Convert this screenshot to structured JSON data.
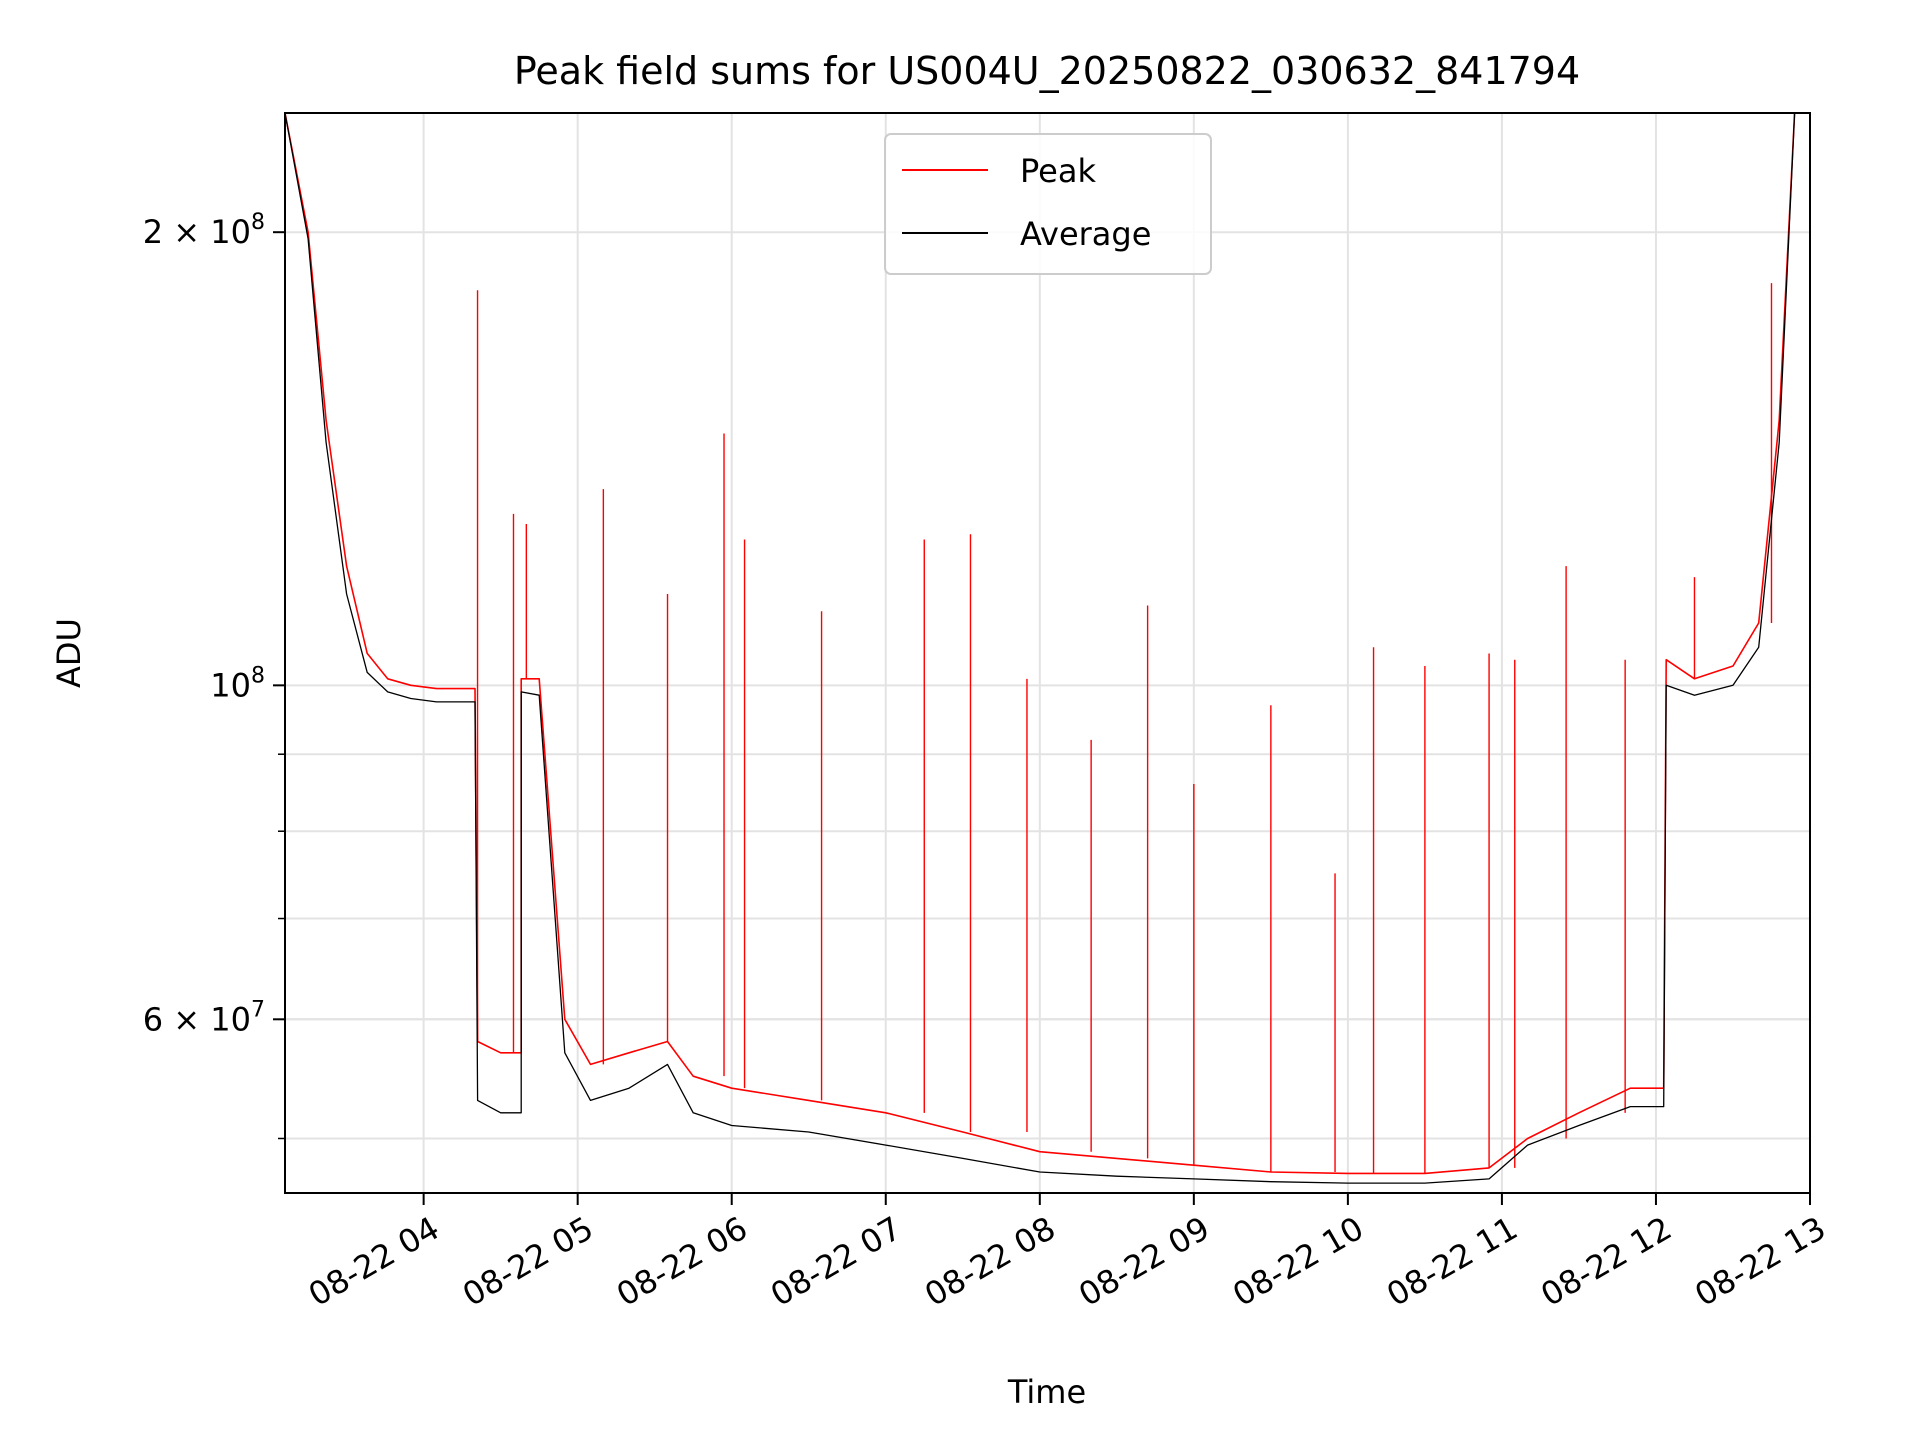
{
  "chart_data": {
    "type": "line",
    "title": "Peak field sums for US004U_20250822_030632_841794",
    "xlabel": "Time",
    "ylabel": "ADU",
    "y_scale": "log",
    "grid": true,
    "legend_position": "upper center",
    "x_ticks": [
      "08-22 04",
      "08-22 05",
      "08-22 06",
      "08-22 07",
      "08-22 08",
      "08-22 09",
      "08-22 10",
      "08-22 11",
      "08-22 12",
      "08-22 13"
    ],
    "y_major_ticks": [
      {
        "value": 200000000,
        "mantissa": "2",
        "exponent": "8"
      },
      {
        "value": 100000000,
        "mantissa": "",
        "exponent": "8"
      },
      {
        "value": 60000000,
        "mantissa": "6",
        "exponent": "7"
      }
    ],
    "y_minor_ticks": [
      50000000,
      60000000,
      70000000,
      80000000,
      90000000
    ],
    "xlim": [
      "2025-08-22 03:06",
      "2025-08-22 13:00"
    ],
    "ylim": [
      46000000,
      240000000
    ],
    "series": [
      {
        "name": "Peak",
        "color": "#ff0000",
        "x": [
          "2025-08-22 03:06",
          "2025-08-22 03:15",
          "2025-08-22 03:22",
          "2025-08-22 03:30",
          "2025-08-22 03:38",
          "2025-08-22 03:46",
          "2025-08-22 03:55",
          "2025-08-22 04:05",
          "2025-08-22 04:15",
          "2025-08-22 04:20",
          "2025-08-22 04:21",
          "2025-08-22 04:30",
          "2025-08-22 04:38",
          "2025-08-22 04:38",
          "2025-08-22 04:45",
          "2025-08-22 04:55",
          "2025-08-22 05:05",
          "2025-08-22 05:20",
          "2025-08-22 05:35",
          "2025-08-22 05:45",
          "2025-08-22 06:00",
          "2025-08-22 06:30",
          "2025-08-22 07:00",
          "2025-08-22 07:30",
          "2025-08-22 08:00",
          "2025-08-22 08:30",
          "2025-08-22 09:00",
          "2025-08-22 09:30",
          "2025-08-22 10:00",
          "2025-08-22 10:30",
          "2025-08-22 10:55",
          "2025-08-22 11:10",
          "2025-08-22 11:30",
          "2025-08-22 11:50",
          "2025-08-22 12:03",
          "2025-08-22 12:04",
          "2025-08-22 12:15",
          "2025-08-22 12:30",
          "2025-08-22 12:40",
          "2025-08-22 12:48",
          "2025-08-22 12:54"
        ],
        "y": [
          240000000,
          200000000,
          150000000,
          120000000,
          105000000,
          101000000,
          100000000,
          99500000,
          99500000,
          99500000,
          58000000,
          57000000,
          57000000,
          101000000,
          101000000,
          60000000,
          56000000,
          57000000,
          58000000,
          55000000,
          54000000,
          53000000,
          52000000,
          50500000,
          49000000,
          48500000,
          48000000,
          47500000,
          47400000,
          47400000,
          47800000,
          50000000,
          52000000,
          54000000,
          54000000,
          104000000,
          101000000,
          103000000,
          110000000,
          150000000,
          240000000
        ],
        "spikes": [
          {
            "x": "2025-08-22 04:21",
            "y": 183000000
          },
          {
            "x": "2025-08-22 04:35",
            "y": 130000000
          },
          {
            "x": "2025-08-22 04:40",
            "y": 128000000
          },
          {
            "x": "2025-08-22 05:10",
            "y": 135000000
          },
          {
            "x": "2025-08-22 05:35",
            "y": 115000000
          },
          {
            "x": "2025-08-22 05:57",
            "y": 147000000
          },
          {
            "x": "2025-08-22 06:05",
            "y": 125000000
          },
          {
            "x": "2025-08-22 06:35",
            "y": 112000000
          },
          {
            "x": "2025-08-22 07:15",
            "y": 125000000
          },
          {
            "x": "2025-08-22 07:33",
            "y": 126000000
          },
          {
            "x": "2025-08-22 07:55",
            "y": 101000000
          },
          {
            "x": "2025-08-22 08:20",
            "y": 92000000
          },
          {
            "x": "2025-08-22 08:42",
            "y": 113000000
          },
          {
            "x": "2025-08-22 09:00",
            "y": 86000000
          },
          {
            "x": "2025-08-22 09:30",
            "y": 97000000
          },
          {
            "x": "2025-08-22 09:55",
            "y": 75000000
          },
          {
            "x": "2025-08-22 10:10",
            "y": 106000000
          },
          {
            "x": "2025-08-22 10:30",
            "y": 103000000
          },
          {
            "x": "2025-08-22 10:55",
            "y": 105000000
          },
          {
            "x": "2025-08-22 11:05",
            "y": 104000000
          },
          {
            "x": "2025-08-22 11:25",
            "y": 120000000
          },
          {
            "x": "2025-08-22 11:48",
            "y": 104000000
          },
          {
            "x": "2025-08-22 12:15",
            "y": 118000000
          },
          {
            "x": "2025-08-22 12:45",
            "y": 185000000
          }
        ]
      },
      {
        "name": "Average",
        "color": "#000000",
        "x": [
          "2025-08-22 03:06",
          "2025-08-22 03:15",
          "2025-08-22 03:22",
          "2025-08-22 03:30",
          "2025-08-22 03:38",
          "2025-08-22 03:46",
          "2025-08-22 03:55",
          "2025-08-22 04:05",
          "2025-08-22 04:15",
          "2025-08-22 04:20",
          "2025-08-22 04:21",
          "2025-08-22 04:30",
          "2025-08-22 04:38",
          "2025-08-22 04:38",
          "2025-08-22 04:45",
          "2025-08-22 04:55",
          "2025-08-22 05:05",
          "2025-08-22 05:20",
          "2025-08-22 05:35",
          "2025-08-22 05:45",
          "2025-08-22 06:00",
          "2025-08-22 06:30",
          "2025-08-22 07:00",
          "2025-08-22 07:30",
          "2025-08-22 08:00",
          "2025-08-22 08:30",
          "2025-08-22 09:00",
          "2025-08-22 09:30",
          "2025-08-22 10:00",
          "2025-08-22 10:30",
          "2025-08-22 10:55",
          "2025-08-22 11:10",
          "2025-08-22 11:30",
          "2025-08-22 11:50",
          "2025-08-22 12:03",
          "2025-08-22 12:04",
          "2025-08-22 12:15",
          "2025-08-22 12:30",
          "2025-08-22 12:40",
          "2025-08-22 12:48",
          "2025-08-22 12:54"
        ],
        "y": [
          240000000,
          198000000,
          145000000,
          115000000,
          102000000,
          99000000,
          98000000,
          97500000,
          97500000,
          97500000,
          53000000,
          52000000,
          52000000,
          99000000,
          98500000,
          57000000,
          53000000,
          54000000,
          56000000,
          52000000,
          51000000,
          50500000,
          49500000,
          48500000,
          47500000,
          47200000,
          47000000,
          46800000,
          46700000,
          46700000,
          47000000,
          49500000,
          51000000,
          52500000,
          52500000,
          100000000,
          98500000,
          100000000,
          106000000,
          145000000,
          240000000
        ]
      }
    ]
  }
}
